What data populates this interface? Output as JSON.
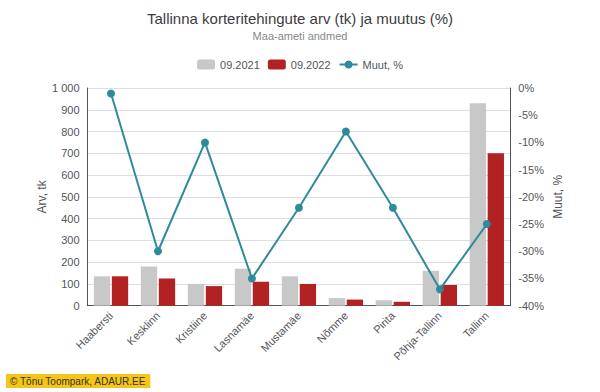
{
  "chart_data": {
    "type": "bar",
    "title": "Tallinna korteritehingute arv (tk) ja muutus (%)",
    "subtitle": "Maa-ameti andmed",
    "ylabel": "Arv, tk",
    "y2label": "Muut, %",
    "categories": [
      "Haabersti",
      "Kesklinn",
      "Kristiine",
      "Lasnamäe",
      "Mustamäe",
      "Nõmme",
      "Pirita",
      "Põhja-Tallinn",
      "Tallinn"
    ],
    "series": [
      {
        "name": "09.2021",
        "type": "bar",
        "color": "#c8c8c8",
        "values": [
          135,
          180,
          100,
          170,
          135,
          35,
          25,
          160,
          930
        ]
      },
      {
        "name": "09.2022",
        "type": "bar",
        "color": "#b22222",
        "values": [
          135,
          125,
          90,
          110,
          100,
          28,
          18,
          95,
          700
        ]
      },
      {
        "name": "Muut, %",
        "type": "line",
        "axis": "y2",
        "color": "#2e8b9a",
        "marker": "circle",
        "values": [
          -1.0,
          -30.0,
          -10.0,
          -35.0,
          -22.0,
          -8.0,
          -22.0,
          -37.0,
          -25.0
        ]
      }
    ],
    "ylim": [
      0,
      1000
    ],
    "yticks": [
      0,
      100,
      200,
      300,
      400,
      500,
      600,
      700,
      800,
      900,
      {
        "value": 1000,
        "label": "1 000"
      }
    ],
    "y2lim": [
      -40,
      0
    ],
    "y2ticks": [
      {
        "value": 0,
        "label": "0%"
      },
      {
        "value": -5,
        "label": "-5%"
      },
      {
        "value": -10,
        "label": "-10%"
      },
      {
        "value": -15,
        "label": "-15%"
      },
      {
        "value": -20,
        "label": "-20%"
      },
      {
        "value": -25,
        "label": "-25%"
      },
      {
        "value": -30,
        "label": "-30%"
      },
      {
        "value": -35,
        "label": "-35%"
      },
      {
        "value": -40,
        "label": "-40%"
      }
    ],
    "grid": true,
    "legend": "top",
    "annotations": [
      "© Tõnu Toompark, ADAUR.EE"
    ]
  }
}
